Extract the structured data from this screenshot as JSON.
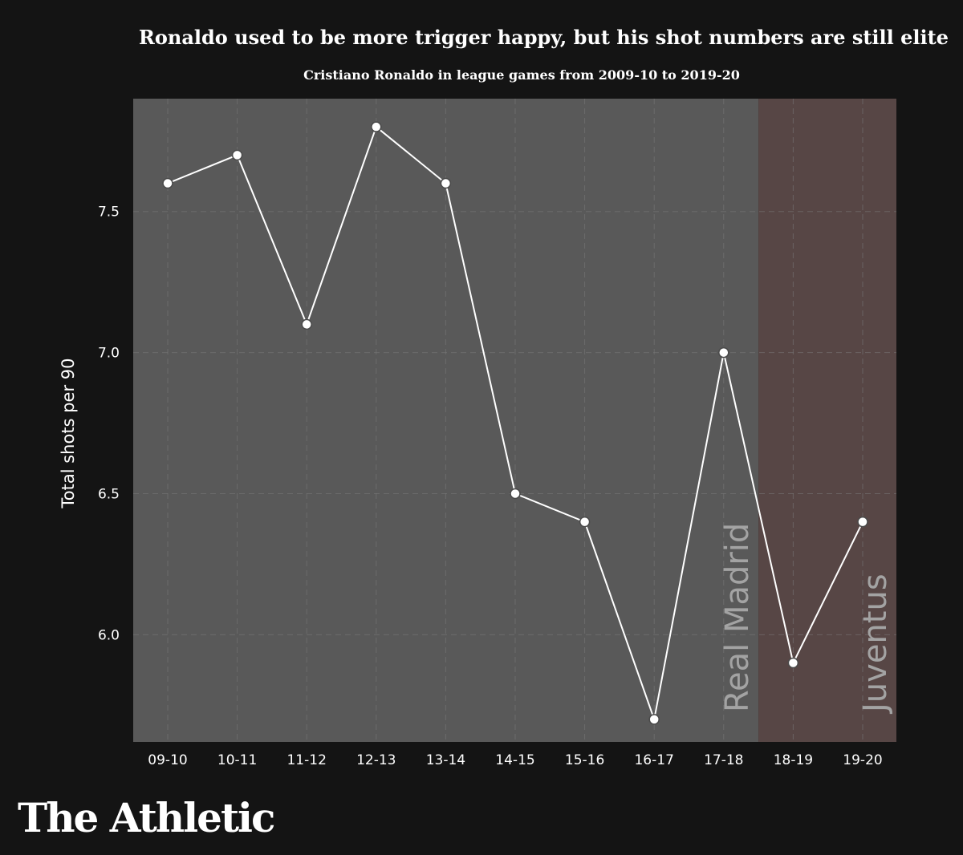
{
  "chart_data": {
    "type": "line",
    "title": "Ronaldo used to be more trigger happy, but his shot numbers are still elite",
    "subtitle": "Cristiano Ronaldo in league games from 2009-10 to 2019-20",
    "xlabel": "",
    "ylabel": "Total shots per 90",
    "categories": [
      "09-10",
      "10-11",
      "11-12",
      "12-13",
      "13-14",
      "14-15",
      "15-16",
      "16-17",
      "17-18",
      "18-19",
      "19-20"
    ],
    "series": [
      {
        "name": "Total shots per 90",
        "values": [
          7.6,
          7.7,
          7.1,
          7.8,
          7.6,
          6.5,
          6.4,
          5.7,
          7.0,
          5.9,
          6.4
        ]
      }
    ],
    "yticks": [
      "6.0",
      "6.5",
      "7.0",
      "7.5"
    ],
    "ylim": [
      5.62,
      7.9
    ],
    "grid": true,
    "regions": [
      {
        "label": "Real Madrid",
        "from": "09-10",
        "to": "17-18",
        "color": "#595959"
      },
      {
        "label": "Juventus",
        "from": "18-19",
        "to": "19-20",
        "color": "#574645"
      }
    ]
  },
  "branding": {
    "logo_text": "The Athletic"
  },
  "colors": {
    "background": "#141414",
    "line": "#ffffff",
    "grid": "#7a7a7a"
  }
}
